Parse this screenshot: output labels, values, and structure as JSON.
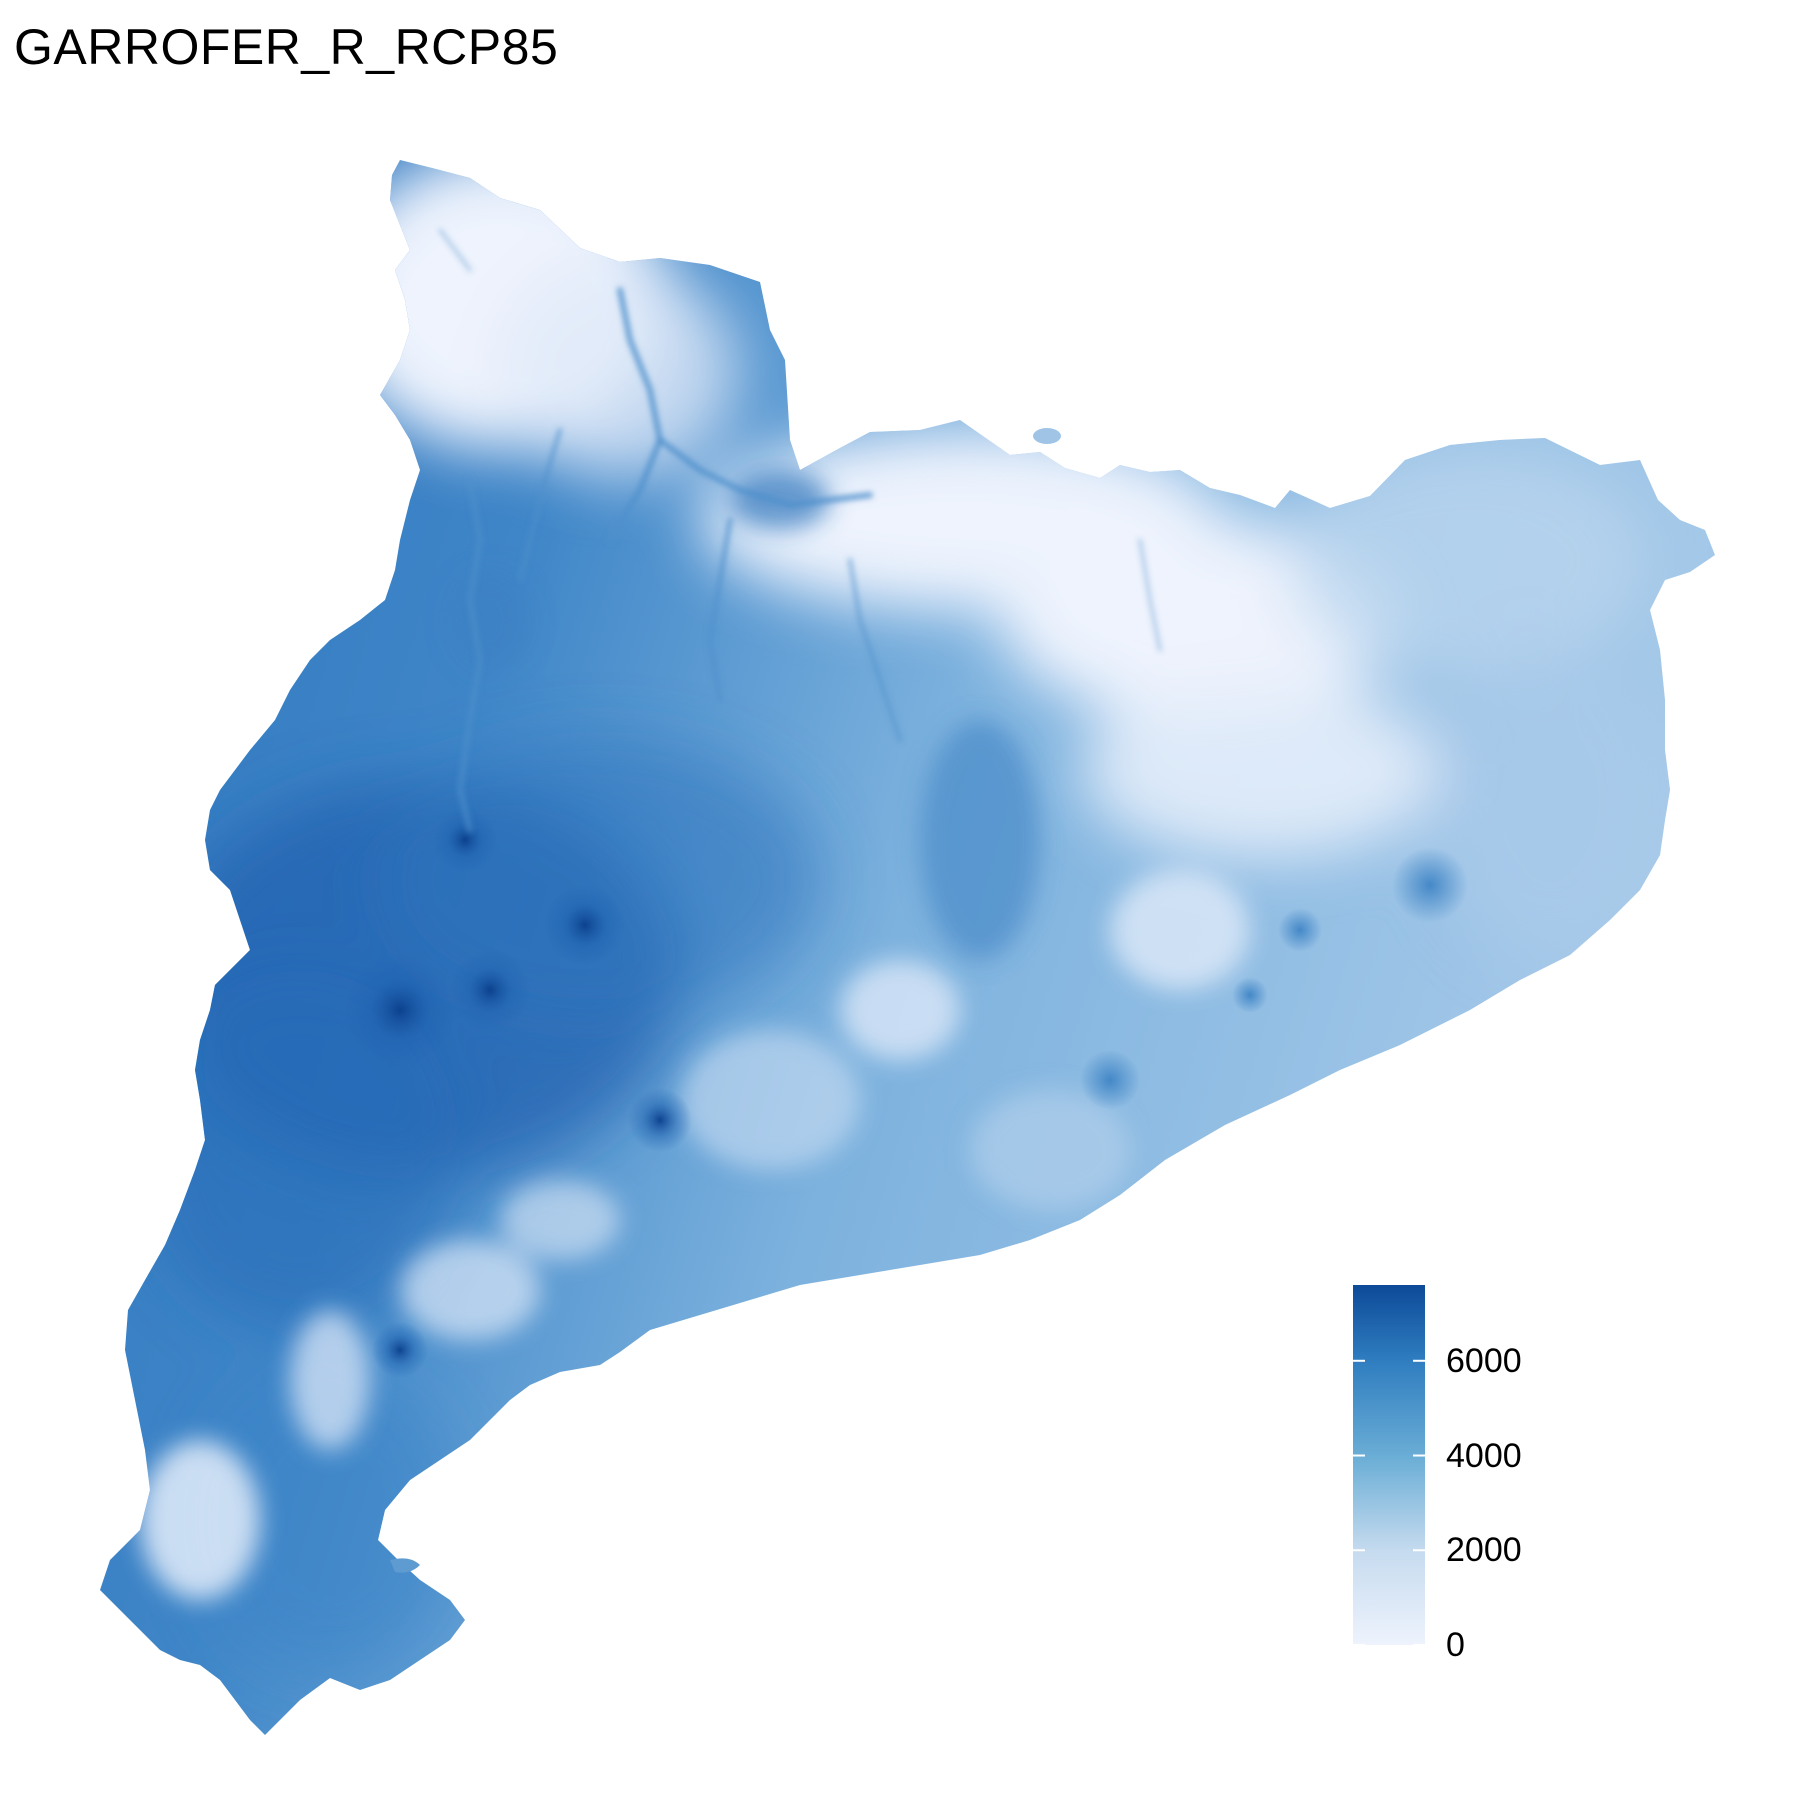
{
  "title": "GARROFER_R_RCP85",
  "legend": {
    "min": 0,
    "max": 7600,
    "ticks": [
      {
        "value": 6000,
        "label": "6000"
      },
      {
        "value": 4000,
        "label": "4000"
      },
      {
        "value": 2000,
        "label": "2000"
      },
      {
        "value": 0,
        "label": "0"
      }
    ],
    "color_low": "#eef3fd",
    "color_mid": "#5b9bcf",
    "color_high": "#0d4a98"
  },
  "map": {
    "region_fill_base": "#6fa7d6",
    "light_areas_color": "#e9f0fc",
    "dark_areas_color": "#1f62b0"
  }
}
